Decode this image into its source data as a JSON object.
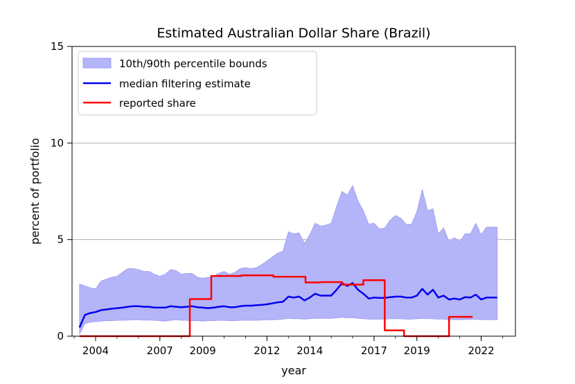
{
  "chart_data": {
    "type": "line",
    "title": "Estimated Australian Dollar Share (Brazil)",
    "xlabel": "year",
    "ylabel": "percent of portfolio",
    "xlim": [
      2002.9,
      2023.6
    ],
    "ylim": [
      0,
      15
    ],
    "x_tick_labels": [
      "2004",
      "2007",
      "2009",
      "2012",
      "2014",
      "2017",
      "2019",
      "2022"
    ],
    "x_ticks": [
      2004,
      2007,
      2009,
      2012,
      2014,
      2017,
      2019,
      2022
    ],
    "y_ticks": [
      0,
      5,
      10,
      15
    ],
    "grid": "horizontal",
    "legend_position": "top-left",
    "colors": {
      "band_fill": "#b4b4f8",
      "band_edge": "#9c9cf0",
      "median": "#0000ee",
      "reported": "#ff0000",
      "grid": "#b0b0b0"
    },
    "band": {
      "name": "10th/90th percentile bounds",
      "x": [
        2003.25,
        2003.5,
        2003.75,
        2004.0,
        2004.25,
        2004.5,
        2004.75,
        2005.0,
        2005.25,
        2005.5,
        2005.75,
        2006.0,
        2006.25,
        2006.5,
        2006.75,
        2007.0,
        2007.25,
        2007.5,
        2007.75,
        2008.0,
        2008.25,
        2008.5,
        2008.75,
        2009.0,
        2009.25,
        2009.5,
        2009.75,
        2010.0,
        2010.25,
        2010.5,
        2010.75,
        2011.0,
        2011.25,
        2011.5,
        2011.75,
        2012.0,
        2012.25,
        2012.5,
        2012.75,
        2013.0,
        2013.25,
        2013.5,
        2013.75,
        2014.0,
        2014.25,
        2014.5,
        2014.75,
        2015.0,
        2015.25,
        2015.5,
        2015.75,
        2016.0,
        2016.25,
        2016.5,
        2016.75,
        2017.0,
        2017.25,
        2017.5,
        2017.75,
        2018.0,
        2018.25,
        2018.5,
        2018.75,
        2019.0,
        2019.25,
        2019.5,
        2019.75,
        2020.0,
        2020.25,
        2020.5,
        2020.75,
        2021.0,
        2021.25,
        2021.5,
        2021.75,
        2022.0,
        2022.25,
        2022.5,
        2022.75
      ],
      "upper": [
        2.7,
        2.6,
        2.5,
        2.45,
        2.85,
        2.95,
        3.05,
        3.1,
        3.3,
        3.5,
        3.5,
        3.45,
        3.35,
        3.35,
        3.2,
        3.1,
        3.2,
        3.45,
        3.4,
        3.2,
        3.25,
        3.25,
        3.05,
        3.0,
        3.05,
        3.1,
        3.25,
        3.35,
        3.2,
        3.3,
        3.5,
        3.55,
        3.5,
        3.55,
        3.7,
        3.9,
        4.1,
        4.3,
        4.4,
        5.4,
        5.3,
        5.35,
        4.8,
        5.25,
        5.85,
        5.7,
        5.75,
        5.85,
        6.7,
        7.5,
        7.3,
        7.8,
        7.0,
        6.5,
        5.8,
        5.85,
        5.55,
        5.6,
        6.0,
        6.25,
        6.1,
        5.8,
        5.8,
        6.45,
        7.6,
        6.5,
        6.6,
        5.3,
        5.6,
        4.9,
        5.1,
        4.9,
        5.3,
        5.3,
        5.85,
        5.25,
        5.65,
        5.65,
        5.65
      ],
      "lower": [
        0.1,
        0.65,
        0.72,
        0.75,
        0.78,
        0.8,
        0.8,
        0.82,
        0.82,
        0.83,
        0.85,
        0.85,
        0.83,
        0.83,
        0.82,
        0.8,
        0.78,
        0.82,
        0.85,
        0.82,
        0.82,
        0.8,
        0.8,
        0.78,
        0.8,
        0.8,
        0.82,
        0.82,
        0.8,
        0.8,
        0.82,
        0.82,
        0.82,
        0.82,
        0.83,
        0.85,
        0.85,
        0.86,
        0.88,
        0.92,
        0.9,
        0.9,
        0.88,
        0.9,
        0.92,
        0.92,
        0.92,
        0.92,
        0.95,
        0.98,
        0.95,
        0.95,
        0.92,
        0.9,
        0.88,
        0.88,
        0.88,
        0.88,
        0.9,
        0.9,
        0.9,
        0.88,
        0.88,
        0.9,
        0.92,
        0.9,
        0.9,
        0.88,
        0.88,
        0.85,
        0.86,
        0.85,
        0.86,
        0.86,
        0.88,
        0.85,
        0.86,
        0.85,
        0.85
      ]
    },
    "series": [
      {
        "name": "median filtering estimate",
        "x": [
          2003.25,
          2003.5,
          2003.75,
          2004.0,
          2004.25,
          2004.5,
          2004.75,
          2005.0,
          2005.25,
          2005.5,
          2005.75,
          2006.0,
          2006.25,
          2006.5,
          2006.75,
          2007.0,
          2007.25,
          2007.5,
          2007.75,
          2008.0,
          2008.25,
          2008.5,
          2008.75,
          2009.0,
          2009.25,
          2009.5,
          2009.75,
          2010.0,
          2010.25,
          2010.5,
          2010.75,
          2011.0,
          2011.25,
          2011.5,
          2011.75,
          2012.0,
          2012.25,
          2012.5,
          2012.75,
          2013.0,
          2013.25,
          2013.5,
          2013.75,
          2014.0,
          2014.25,
          2014.5,
          2014.75,
          2015.0,
          2015.25,
          2015.5,
          2015.75,
          2016.0,
          2016.25,
          2016.5,
          2016.75,
          2017.0,
          2017.25,
          2017.5,
          2017.75,
          2018.0,
          2018.25,
          2018.5,
          2018.75,
          2019.0,
          2019.25,
          2019.5,
          2019.75,
          2020.0,
          2020.25,
          2020.5,
          2020.75,
          2021.0,
          2021.25,
          2021.5,
          2021.75,
          2022.0,
          2022.25,
          2022.5,
          2022.75
        ],
        "values": [
          0.45,
          1.1,
          1.2,
          1.25,
          1.35,
          1.38,
          1.42,
          1.45,
          1.48,
          1.52,
          1.55,
          1.55,
          1.52,
          1.52,
          1.48,
          1.48,
          1.48,
          1.55,
          1.52,
          1.5,
          1.52,
          1.55,
          1.5,
          1.48,
          1.45,
          1.48,
          1.52,
          1.55,
          1.5,
          1.5,
          1.55,
          1.58,
          1.58,
          1.6,
          1.62,
          1.65,
          1.7,
          1.75,
          1.78,
          2.05,
          2.0,
          2.05,
          1.85,
          2.0,
          2.2,
          2.1,
          2.1,
          2.1,
          2.4,
          2.75,
          2.6,
          2.75,
          2.4,
          2.2,
          1.95,
          2.0,
          1.98,
          1.98,
          2.02,
          2.05,
          2.05,
          2.0,
          2.0,
          2.1,
          2.45,
          2.15,
          2.4,
          2.0,
          2.1,
          1.9,
          1.95,
          1.9,
          2.02,
          2.0,
          2.15,
          1.9,
          2.0,
          2.0,
          2.0
        ]
      },
      {
        "name": "reported share",
        "x": [
          2003.25,
          2008.4,
          2008.4,
          2009.4,
          2009.4,
          2010.8,
          2010.8,
          2012.3,
          2012.3,
          2013.8,
          2013.8,
          2014.5,
          2014.5,
          2015.5,
          2015.5,
          2016.5,
          2016.5,
          2017.5,
          2017.5,
          2018.4,
          2018.4,
          2020.5,
          2020.5,
          2021.6
        ],
        "values": [
          0,
          0,
          1.92,
          1.92,
          3.12,
          3.12,
          3.15,
          3.15,
          3.08,
          3.08,
          2.78,
          2.78,
          2.8,
          2.8,
          2.67,
          2.67,
          2.9,
          2.9,
          0.3,
          0.3,
          0,
          0,
          1.0,
          1.0
        ]
      }
    ]
  }
}
